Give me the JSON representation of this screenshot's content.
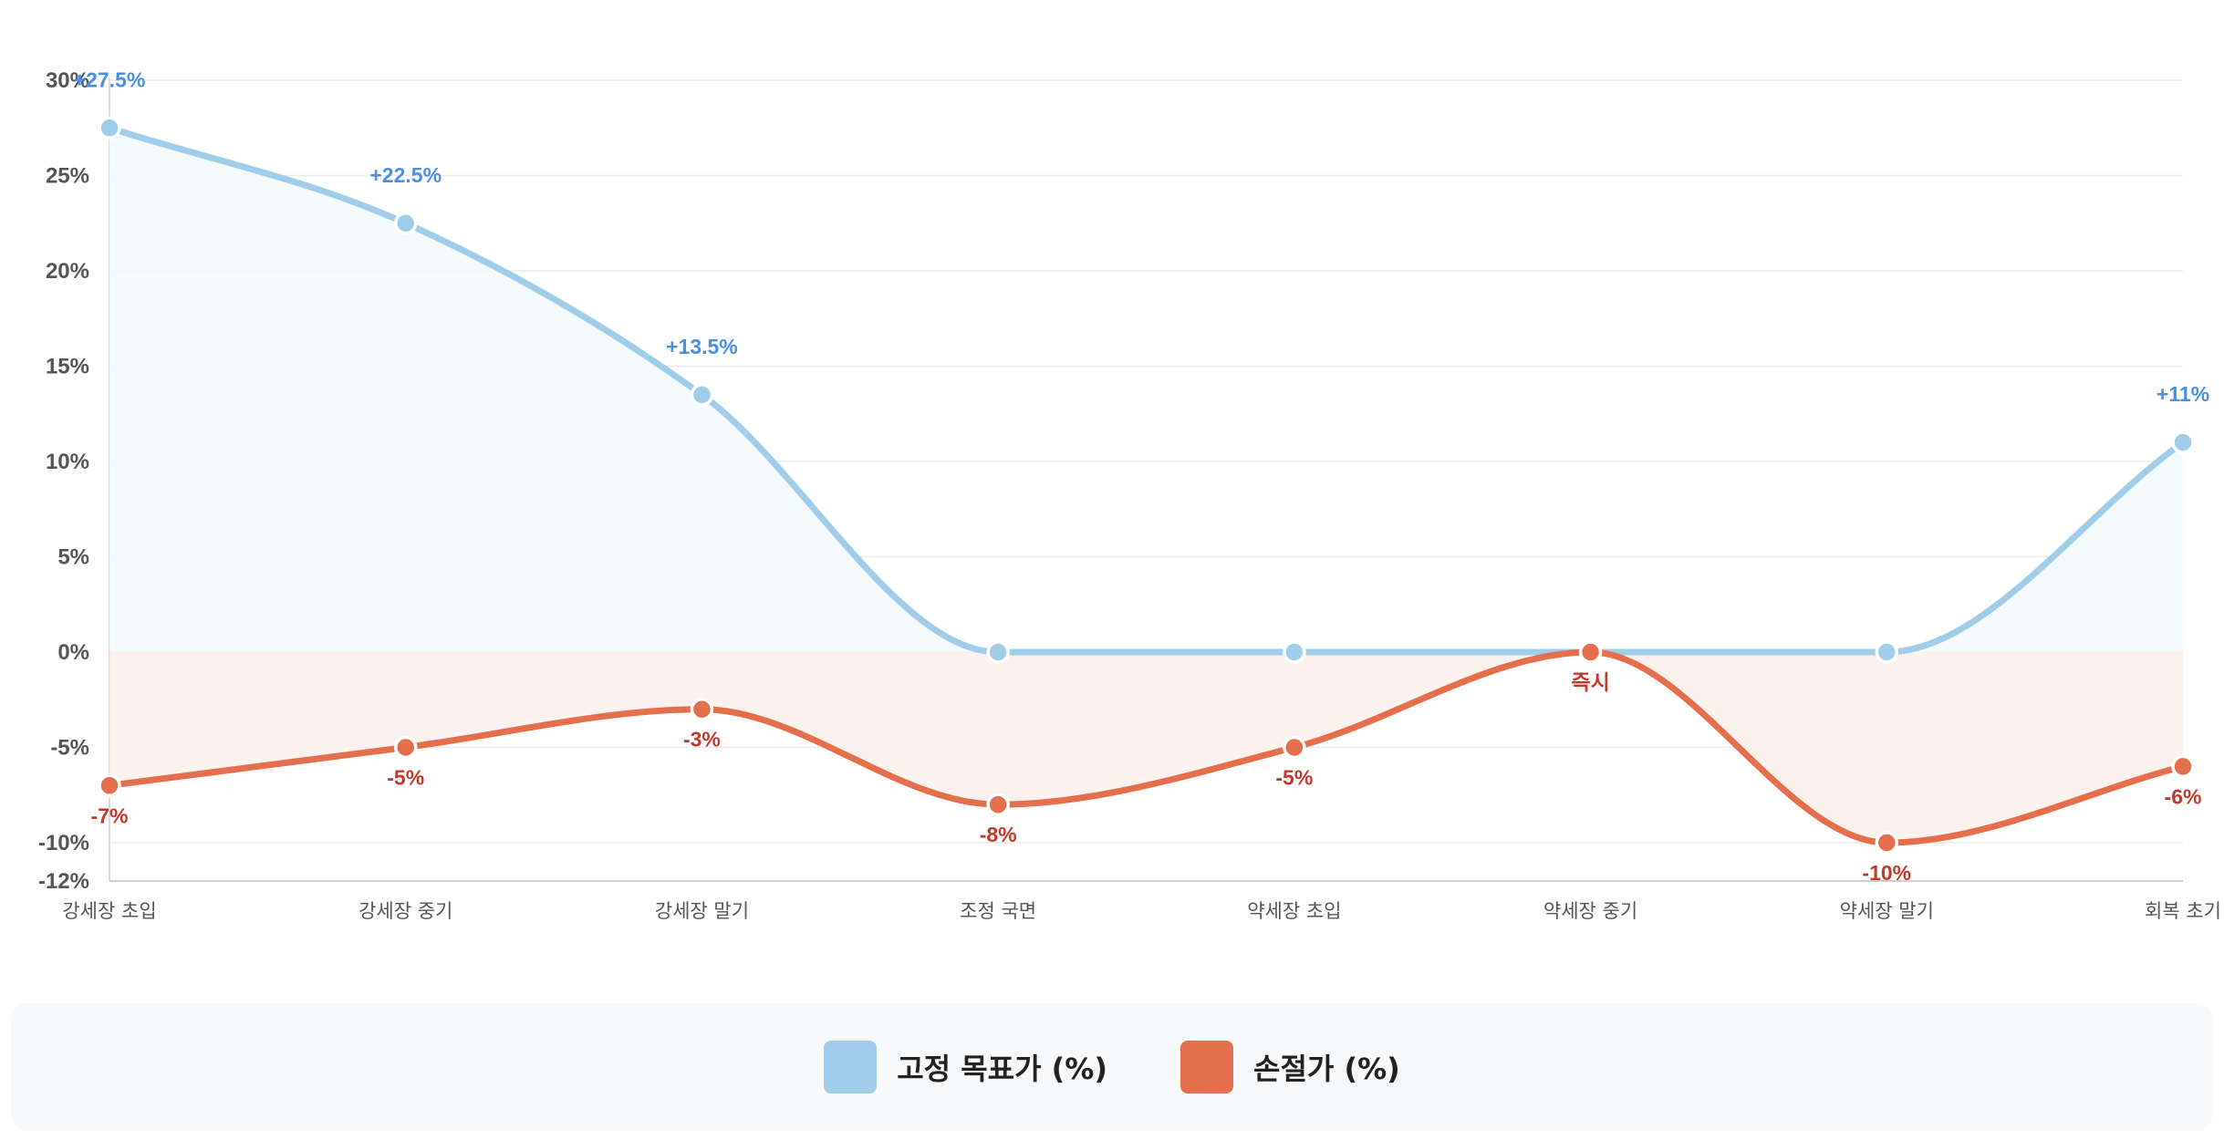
{
  "colors": {
    "target": "#9fcdea",
    "stop": "#e56f4c",
    "target_label": "#4a8fe0",
    "stop_label": "#c0392b",
    "target_fill": "#f3f8fb",
    "stop_fill": "#fbefeb",
    "grid": "#ececec"
  },
  "chart_data": {
    "type": "line",
    "title": "",
    "xlabel": "",
    "ylabel": "",
    "ylim": [
      -12,
      30
    ],
    "y_ticks": [
      {
        "value": 30,
        "label": "30%"
      },
      {
        "value": 25,
        "label": "25%"
      },
      {
        "value": 20,
        "label": "20%"
      },
      {
        "value": 15,
        "label": "15%"
      },
      {
        "value": 10,
        "label": "10%"
      },
      {
        "value": 5,
        "label": "5%"
      },
      {
        "value": 0,
        "label": "0%"
      },
      {
        "value": -5,
        "label": "-5%"
      },
      {
        "value": -10,
        "label": "-10%"
      },
      {
        "value": -12,
        "label": "-12%"
      }
    ],
    "categories": [
      "강세장 초입",
      "강세장 중기",
      "강세장 말기",
      "조정 국면",
      "약세장 초입",
      "약세장 중기",
      "약세장 말기",
      "회복 초기"
    ],
    "series": [
      {
        "name": "고정 목표가 (%)",
        "values": [
          27.5,
          22.5,
          13.5,
          0,
          0,
          0,
          0,
          11
        ],
        "labels": [
          "+27.5%",
          "+22.5%",
          "+13.5%",
          "",
          "",
          "",
          "",
          "+11%"
        ]
      },
      {
        "name": "손절가 (%)",
        "values": [
          -7,
          -5,
          -3,
          -8,
          -5,
          0,
          -10,
          -6
        ],
        "labels": [
          "-7%",
          "-5%",
          "-3%",
          "-8%",
          "-5%",
          "즉시",
          "-10%",
          "-6%"
        ]
      }
    ],
    "grid": true,
    "legend": "bottom"
  }
}
